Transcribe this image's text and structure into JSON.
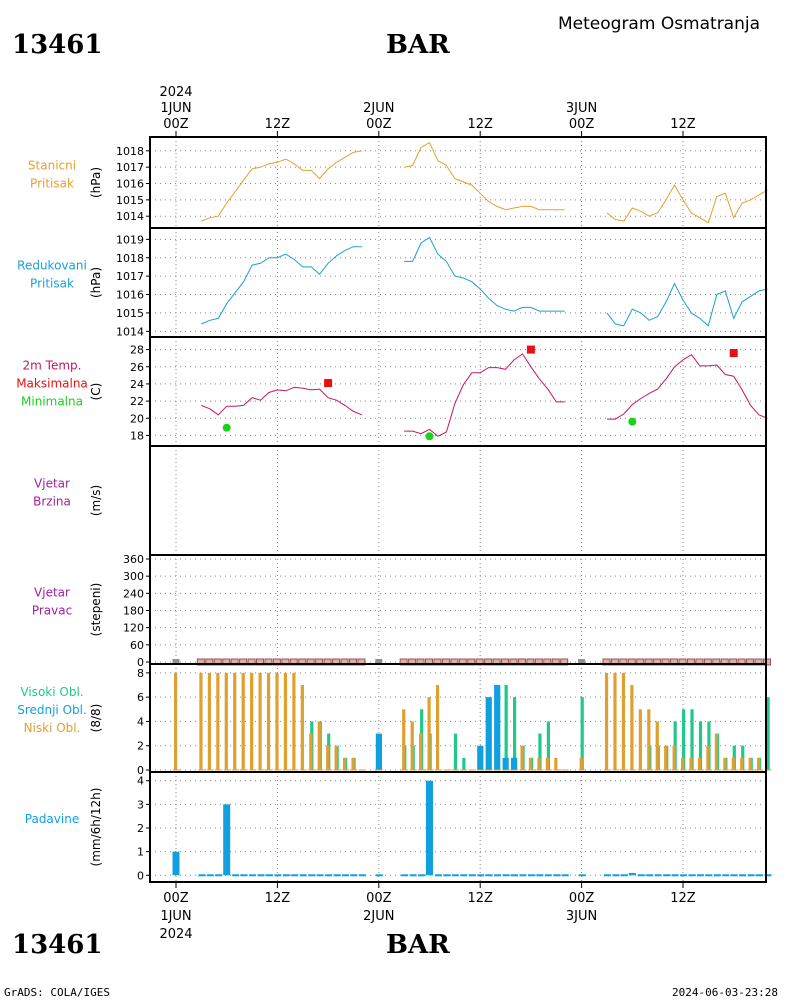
{
  "header": {
    "station_id": "13461",
    "title": "Meteogram Osmatranja",
    "station_name": "BAR"
  },
  "footer": {
    "credit": "GrADS: COLA/IGES",
    "timestamp": "2024-06-03-23:28"
  },
  "colors": {
    "pressure": "#e6a030",
    "reduced": "#1aa0d8",
    "temp": "#c0186a",
    "max": "#e81010",
    "min": "#19d219",
    "wind": "#a020a0",
    "high_cloud": "#20c88a",
    "mid_cloud": "#10a0e0",
    "low_cloud": "#e0a030",
    "precip": "#10a0e0",
    "dir_marker": "#a05050",
    "dir_missing": "#909090"
  },
  "top_axis": {
    "year": "2024",
    "days": [
      "1JUN",
      "2JUN",
      "3JUN"
    ],
    "ticks": [
      "00Z",
      "12Z",
      "00Z",
      "12Z",
      "00Z",
      "12Z"
    ]
  },
  "bottom_axis": {
    "ticks": [
      "00Z",
      "12Z",
      "00Z",
      "12Z",
      "00Z",
      "12Z"
    ],
    "days": [
      "1JUN",
      "2JUN",
      "3JUN"
    ],
    "year": "2024"
  },
  "chart_data": [
    {
      "type": "line",
      "id": "station_pressure",
      "labels": [
        "Stanicni",
        "Pritisak"
      ],
      "ylabel": "(hPa)",
      "ylim": [
        1013.4,
        1018.6
      ],
      "yticks": [
        1014,
        1015,
        1016,
        1017,
        1018
      ],
      "series": [
        {
          "x": [
            3,
            4,
            5,
            6,
            7,
            8,
            9,
            10,
            11,
            12,
            13,
            14,
            15,
            16,
            17,
            18,
            19,
            20,
            21,
            22
          ],
          "values": [
            1013.7,
            1013.9,
            1014.0,
            1014.8,
            1015.5,
            1016.2,
            1016.9,
            1017.0,
            1017.2,
            1017.3,
            1017.5,
            1017.2,
            1016.8,
            1016.8,
            1016.3,
            1016.9,
            1017.3,
            1017.6,
            1017.9,
            1018.0
          ]
        },
        {
          "x": [
            27,
            28,
            29,
            30,
            31,
            32,
            33,
            34,
            35,
            36,
            37,
            38,
            39,
            40,
            41,
            42,
            43,
            44,
            45,
            46
          ],
          "values": [
            1017.0,
            1017.1,
            1018.2,
            1018.5,
            1017.4,
            1017.1,
            1016.3,
            1016.1,
            1015.9,
            1015.4,
            1014.9,
            1014.6,
            1014.4,
            1014.5,
            1014.6,
            1014.6,
            1014.4,
            1014.4,
            1014.4,
            1014.4
          ]
        },
        {
          "x": [
            51,
            52,
            53,
            54,
            55,
            56,
            57,
            58,
            59,
            60,
            61,
            62,
            63,
            64,
            65,
            66,
            67,
            68,
            69,
            70
          ],
          "values": [
            1014.2,
            1013.8,
            1013.7,
            1014.5,
            1014.3,
            1014.0,
            1014.2,
            1015.0,
            1015.9,
            1015.0,
            1014.2,
            1013.9,
            1013.6,
            1015.2,
            1015.4,
            1013.9,
            1014.8,
            1015.0,
            1015.3,
            1015.6
          ]
        }
      ]
    },
    {
      "type": "line",
      "id": "reduced_pressure",
      "labels": [
        "Redukovani",
        "Pritisak"
      ],
      "ylabel": "(hPa)",
      "ylim": [
        1013.8,
        1019.4
      ],
      "yticks": [
        1014,
        1015,
        1016,
        1017,
        1018,
        1019
      ],
      "series": [
        {
          "x": [
            3,
            4,
            5,
            6,
            7,
            8,
            9,
            10,
            11,
            12,
            13,
            14,
            15,
            16,
            17,
            18,
            19,
            20,
            21,
            22
          ],
          "values": [
            1014.4,
            1014.6,
            1014.7,
            1015.5,
            1016.1,
            1016.7,
            1017.6,
            1017.7,
            1018.0,
            1018.0,
            1018.2,
            1017.9,
            1017.5,
            1017.5,
            1017.1,
            1017.7,
            1018.1,
            1018.4,
            1018.6,
            1018.6
          ]
        },
        {
          "x": [
            27,
            28,
            29,
            30,
            31,
            32,
            33,
            34,
            35,
            36,
            37,
            38,
            39,
            40,
            41,
            42,
            43,
            44,
            45,
            46
          ],
          "values": [
            1017.8,
            1017.8,
            1018.8,
            1019.1,
            1018.2,
            1017.8,
            1017.0,
            1016.9,
            1016.7,
            1016.3,
            1015.8,
            1015.4,
            1015.2,
            1015.1,
            1015.3,
            1015.3,
            1015.1,
            1015.1,
            1015.1,
            1015.1
          ]
        },
        {
          "x": [
            51,
            52,
            53,
            54,
            55,
            56,
            57,
            58,
            59,
            60,
            61,
            62,
            63,
            64,
            65,
            66,
            67,
            68,
            69,
            70
          ],
          "values": [
            1015.0,
            1014.4,
            1014.3,
            1015.2,
            1015.0,
            1014.6,
            1014.8,
            1015.6,
            1016.6,
            1015.7,
            1015.0,
            1014.7,
            1014.3,
            1016.0,
            1016.2,
            1014.7,
            1015.6,
            1015.9,
            1016.2,
            1016.3
          ]
        }
      ]
    },
    {
      "type": "line",
      "id": "temperature",
      "labels": [
        "2m Temp.",
        "Maksimalna",
        "Minimalna"
      ],
      "ylabel": "(C)",
      "ylim": [
        17.0,
        29.0
      ],
      "yticks": [
        18,
        20,
        22,
        24,
        26,
        28
      ],
      "series": [
        {
          "x": [
            3,
            4,
            5,
            6,
            7,
            8,
            9,
            10,
            11,
            12,
            13,
            14,
            15,
            16,
            17,
            18,
            19,
            20,
            21,
            22
          ],
          "values": [
            21.5,
            21.1,
            20.4,
            21.4,
            21.4,
            21.5,
            22.4,
            22.1,
            23.0,
            23.3,
            23.2,
            23.6,
            23.5,
            23.3,
            23.4,
            22.4,
            22.1,
            21.5,
            20.8,
            20.4
          ]
        },
        {
          "x": [
            27,
            28,
            29,
            30,
            31,
            32,
            33,
            34,
            35,
            36,
            37,
            38,
            39,
            40,
            41,
            42,
            43,
            44,
            45,
            46
          ],
          "values": [
            18.5,
            18.5,
            18.2,
            18.7,
            17.9,
            18.4,
            21.7,
            23.9,
            25.3,
            25.3,
            25.9,
            25.9,
            25.7,
            26.8,
            27.5,
            26.0,
            24.6,
            23.4,
            21.9,
            21.9
          ]
        },
        {
          "x": [
            51,
            52,
            53,
            54,
            55,
            56,
            57,
            58,
            59,
            60,
            61,
            62,
            63,
            64,
            65,
            66,
            67,
            68,
            69,
            70
          ],
          "values": [
            19.9,
            19.9,
            20.5,
            21.6,
            22.3,
            22.9,
            23.4,
            24.6,
            26.0,
            26.8,
            27.4,
            26.1,
            26.1,
            26.2,
            25.1,
            24.9,
            23.3,
            21.5,
            20.4,
            20.0
          ]
        }
      ],
      "maximum": {
        "x": [
          18,
          42,
          66
        ],
        "values": [
          24.1,
          28.0,
          27.6
        ]
      },
      "minimum": {
        "x": [
          6,
          30,
          54
        ],
        "values": [
          18.9,
          17.9,
          19.6
        ]
      }
    },
    {
      "type": "line",
      "id": "wind_speed",
      "labels": [
        "Vjetar",
        "Brzina"
      ],
      "ylabel": "(m/s)",
      "yticks": [],
      "series": []
    },
    {
      "type": "scatter",
      "id": "wind_direction",
      "labels": [
        "Vjetar",
        "Pravac"
      ],
      "ylabel": "(stepeni)",
      "ylim": [
        0,
        360
      ],
      "yticks": [
        0,
        60,
        120,
        180,
        240,
        300,
        360
      ],
      "missing_x": [
        0,
        24,
        48
      ],
      "x": [
        3,
        4,
        5,
        6,
        7,
        8,
        9,
        10,
        11,
        12,
        13,
        14,
        15,
        16,
        17,
        18,
        19,
        20,
        21,
        22,
        27,
        28,
        29,
        30,
        31,
        32,
        33,
        34,
        35,
        36,
        37,
        38,
        39,
        40,
        41,
        42,
        43,
        44,
        45,
        46,
        51,
        52,
        53,
        54,
        55,
        56,
        57,
        58,
        59,
        60,
        61,
        62,
        63,
        64,
        65,
        66,
        67,
        68,
        69,
        70
      ],
      "values": [
        0,
        0,
        0,
        0,
        0,
        0,
        0,
        0,
        0,
        0,
        0,
        0,
        0,
        0,
        0,
        0,
        0,
        0,
        0,
        0,
        0,
        0,
        0,
        0,
        0,
        0,
        0,
        0,
        0,
        0,
        0,
        0,
        0,
        0,
        0,
        0,
        0,
        0,
        0,
        0,
        0,
        0,
        0,
        0,
        0,
        0,
        0,
        0,
        0,
        0,
        0,
        0,
        0,
        0,
        0,
        0,
        0,
        0,
        0,
        0
      ]
    },
    {
      "type": "bar",
      "id": "clouds",
      "labels": [
        "Visoki Obl.",
        "Srednji Obl.",
        "Niski Obl."
      ],
      "ylabel": "(8/8)",
      "ylim": [
        0,
        8.4
      ],
      "yticks": [
        0,
        2,
        4,
        6,
        8
      ],
      "x": [
        0,
        3,
        4,
        5,
        6,
        7,
        8,
        9,
        10,
        11,
        12,
        13,
        14,
        15,
        16,
        17,
        18,
        19,
        20,
        21,
        22,
        24,
        27,
        28,
        29,
        30,
        31,
        32,
        33,
        34,
        35,
        36,
        37,
        38,
        39,
        40,
        41,
        42,
        43,
        44,
        45,
        46,
        48,
        51,
        52,
        53,
        54,
        55,
        56,
        57,
        58,
        59,
        60,
        61,
        62,
        63,
        64,
        65,
        66,
        67,
        68,
        69,
        70
      ],
      "series": [
        {
          "name": "Visoki Obl.",
          "values": [
            0,
            0,
            0,
            0,
            0,
            0,
            0,
            0,
            0,
            0,
            0,
            0,
            0,
            0,
            4,
            4,
            3,
            2,
            1,
            1,
            0,
            0,
            2,
            2,
            5,
            3,
            0,
            0,
            3,
            1,
            0,
            0,
            0,
            0,
            7,
            6,
            2,
            1,
            3,
            4,
            0,
            0,
            6,
            0,
            0,
            0,
            0,
            0,
            2,
            2,
            2,
            4,
            5,
            5,
            4,
            4,
            3,
            1,
            2,
            2,
            1,
            1,
            6
          ]
        },
        {
          "name": "Srednji Obl.",
          "values": [
            0,
            0,
            0,
            0,
            0,
            0,
            0,
            0,
            0,
            0,
            0,
            0,
            0,
            0,
            0,
            0,
            0,
            0,
            0,
            0,
            0,
            3,
            0,
            0,
            0,
            0,
            0,
            0,
            0,
            0,
            0,
            2,
            6,
            7,
            1,
            1,
            0,
            0,
            0,
            0,
            0,
            0,
            0,
            0,
            0,
            0,
            0,
            0,
            0,
            0,
            0,
            0,
            0,
            0,
            0,
            0,
            0,
            0,
            0,
            0,
            0,
            0,
            0
          ]
        },
        {
          "name": "Niski Obl.",
          "values": [
            8,
            8,
            8,
            8,
            8,
            8,
            8,
            8,
            8,
            8,
            8,
            8,
            8,
            7,
            3,
            4,
            2,
            2,
            1,
            1,
            0,
            0,
            5,
            4,
            3,
            6,
            7,
            0,
            0,
            0,
            0,
            0,
            0,
            0,
            0,
            0,
            2,
            1,
            1,
            1,
            1,
            0,
            1,
            8,
            8,
            8,
            7,
            5,
            5,
            4,
            2,
            2,
            1,
            1,
            1,
            2,
            3,
            1,
            1,
            1,
            1,
            1,
            0
          ]
        }
      ]
    },
    {
      "type": "bar",
      "id": "precipitation",
      "labels": [
        "Padavine"
      ],
      "ylabel": "(mm/6h/12h)",
      "ylim": [
        -0.2,
        4.2
      ],
      "yticks": [
        0,
        1,
        2,
        3,
        4
      ],
      "x": [
        0,
        6,
        30,
        54
      ],
      "values": [
        1.0,
        3.0,
        4.0,
        0.1
      ],
      "trace_x": [
        3,
        4,
        5,
        7,
        8,
        9,
        10,
        11,
        12,
        13,
        14,
        15,
        16,
        17,
        18,
        19,
        20,
        21,
        22,
        24,
        27,
        28,
        29,
        31,
        32,
        33,
        34,
        35,
        36,
        37,
        38,
        39,
        40,
        41,
        42,
        43,
        44,
        45,
        46,
        48,
        51,
        52,
        53,
        55,
        56,
        57,
        58,
        59,
        60,
        61,
        62,
        63,
        64,
        65,
        66,
        67,
        68,
        69,
        70
      ]
    }
  ]
}
